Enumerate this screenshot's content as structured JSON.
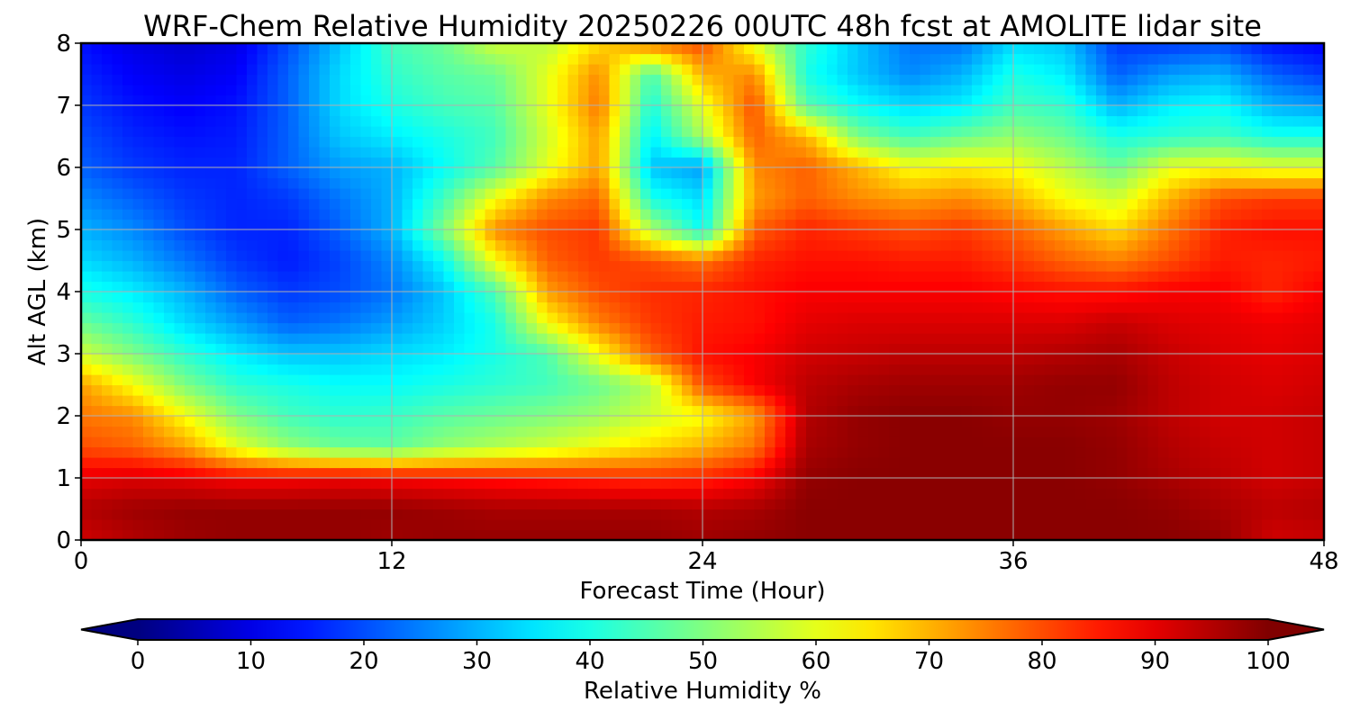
{
  "chart_data": {
    "type": "heatmap",
    "title": "WRF-Chem Relative Humidity 20250226 00UTC 48h fcst at AMOLITE lidar site",
    "xlabel": "Forecast Time (Hour)",
    "ylabel": "Alt AGL (km)",
    "xlim": [
      0,
      48
    ],
    "ylim": [
      0,
      8
    ],
    "x_ticks": [
      0,
      12,
      24,
      36,
      48
    ],
    "x_tick_labels": [
      "0",
      "12",
      "24",
      "36",
      "48"
    ],
    "y_ticks": [
      0,
      1,
      2,
      3,
      4,
      5,
      6,
      7,
      8
    ],
    "y_tick_labels": [
      "0",
      "1",
      "2",
      "3",
      "4",
      "5",
      "6",
      "7",
      "8"
    ],
    "grid": true,
    "colormap": "jet",
    "colorbar": {
      "label": "Relative Humidity %",
      "orientation": "horizontal",
      "placement": "bottom",
      "range": [
        0,
        100
      ],
      "extend": "both",
      "ticks": [
        0,
        10,
        20,
        30,
        40,
        50,
        60,
        70,
        80,
        90,
        100
      ],
      "tick_labels": [
        "0",
        "10",
        "20",
        "30",
        "40",
        "50",
        "60",
        "70",
        "80",
        "90",
        "100"
      ]
    },
    "x": [
      0,
      2,
      4,
      6,
      8,
      10,
      12,
      14,
      16,
      18,
      20,
      22,
      24,
      26,
      28,
      30,
      32,
      34,
      36,
      38,
      40,
      42,
      44,
      46,
      48
    ],
    "y": [
      0,
      0.5,
      1,
      1.5,
      2,
      2.5,
      3,
      3.5,
      4,
      4.5,
      5,
      5.5,
      6,
      6.5,
      7,
      7.5,
      8
    ],
    "z": [
      [
        92,
        95,
        97,
        98,
        98,
        98,
        97,
        98,
        98,
        98,
        98,
        98,
        97,
        98,
        99,
        99,
        99,
        99,
        99,
        99,
        99,
        99,
        98,
        92,
        93
      ],
      [
        95,
        97,
        98,
        98,
        98,
        98,
        98,
        97,
        96,
        96,
        96,
        96,
        95,
        96,
        99,
        99,
        99,
        99,
        99,
        99,
        99,
        98,
        96,
        94,
        95
      ],
      [
        90,
        91,
        90,
        88,
        88,
        89,
        88,
        87,
        86,
        85,
        84,
        83,
        84,
        88,
        98,
        99,
        99,
        99,
        99,
        99,
        98,
        96,
        94,
        92,
        93
      ],
      [
        80,
        78,
        72,
        60,
        52,
        48,
        47,
        52,
        55,
        58,
        62,
        66,
        70,
        76,
        96,
        98,
        99,
        99,
        99,
        99,
        98,
        95,
        93,
        92,
        93
      ],
      [
        76,
        74,
        62,
        50,
        44,
        42,
        43,
        46,
        48,
        50,
        53,
        58,
        62,
        72,
        95,
        98,
        99,
        99,
        98,
        98,
        97,
        94,
        92,
        92,
        93
      ],
      [
        72,
        62,
        50,
        42,
        40,
        38,
        38,
        40,
        42,
        44,
        48,
        55,
        80,
        88,
        94,
        96,
        97,
        97,
        97,
        98,
        98,
        94,
        92,
        91,
        92
      ],
      [
        58,
        50,
        42,
        36,
        32,
        32,
        34,
        36,
        40,
        45,
        62,
        78,
        86,
        88,
        92,
        93,
        94,
        94,
        94,
        95,
        96,
        93,
        91,
        90,
        91
      ],
      [
        48,
        42,
        34,
        28,
        22,
        24,
        28,
        33,
        40,
        62,
        75,
        82,
        85,
        86,
        90,
        91,
        91,
        91,
        91,
        91,
        93,
        91,
        90,
        89,
        90
      ],
      [
        40,
        36,
        30,
        22,
        18,
        20,
        24,
        32,
        45,
        72,
        80,
        83,
        84,
        86,
        88,
        88,
        88,
        88,
        87,
        86,
        86,
        88,
        88,
        84,
        88
      ],
      [
        34,
        30,
        24,
        18,
        15,
        19,
        26,
        38,
        62,
        78,
        82,
        80,
        76,
        84,
        86,
        86,
        85,
        85,
        82,
        78,
        75,
        80,
        85,
        84,
        85
      ],
      [
        30,
        26,
        20,
        16,
        16,
        22,
        30,
        50,
        74,
        80,
        82,
        55,
        38,
        78,
        84,
        82,
        80,
        82,
        78,
        72,
        66,
        76,
        84,
        86,
        86
      ],
      [
        26,
        22,
        18,
        16,
        18,
        24,
        30,
        44,
        62,
        74,
        78,
        40,
        34,
        72,
        78,
        74,
        72,
        74,
        70,
        62,
        58,
        70,
        80,
        82,
        82
      ],
      [
        22,
        18,
        16,
        16,
        22,
        28,
        30,
        38,
        46,
        60,
        72,
        32,
        28,
        74,
        78,
        70,
        62,
        64,
        62,
        56,
        48,
        60,
        62,
        60,
        60
      ],
      [
        20,
        16,
        14,
        15,
        22,
        32,
        36,
        40,
        44,
        58,
        72,
        36,
        54,
        78,
        70,
        50,
        44,
        48,
        52,
        48,
        40,
        42,
        44,
        40,
        40
      ],
      [
        18,
        14,
        12,
        14,
        22,
        34,
        40,
        44,
        46,
        60,
        76,
        40,
        60,
        80,
        46,
        38,
        34,
        36,
        44,
        42,
        30,
        36,
        38,
        30,
        28
      ],
      [
        16,
        12,
        10,
        12,
        22,
        34,
        42,
        46,
        48,
        60,
        74,
        44,
        70,
        74,
        40,
        32,
        26,
        30,
        40,
        36,
        22,
        28,
        30,
        22,
        18
      ],
      [
        14,
        10,
        8,
        10,
        20,
        32,
        44,
        48,
        58,
        56,
        66,
        76,
        80,
        60,
        42,
        32,
        24,
        24,
        34,
        32,
        18,
        18,
        20,
        14,
        12
      ]
    ]
  }
}
